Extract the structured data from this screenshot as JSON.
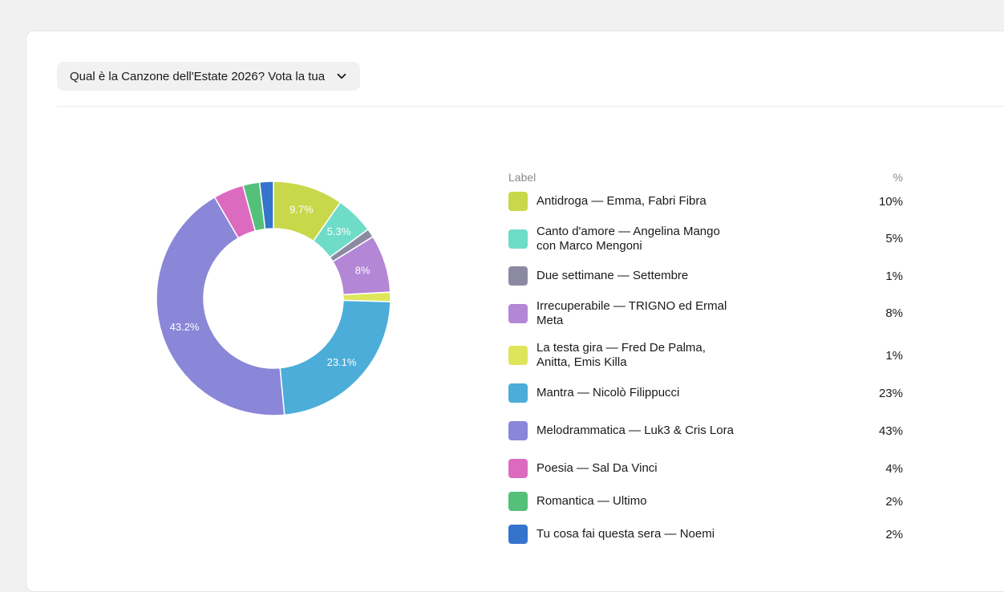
{
  "poll": {
    "question": "Qual è la Canzone dell'Estate 2026? Vota la tua"
  },
  "legend": {
    "header_label": "Label",
    "header_pct": "%"
  },
  "chart_data": {
    "type": "pie",
    "donut": true,
    "start_angle_deg": 0,
    "direction": "clockwise",
    "slices": [
      {
        "label": "Antidroga — Emma, Fabri Fibra",
        "value": 9.7,
        "pct_label": "10%",
        "color": "#c9d84a",
        "slice_label": "9.7%"
      },
      {
        "label": "Canto d'amore — Angelina Mango con Marco Mengoni",
        "value": 5.3,
        "pct_label": "5%",
        "color": "#6fdcc8",
        "slice_label": "5.3%"
      },
      {
        "label": "Due settimane — Settembre",
        "value": 1.2,
        "pct_label": "1%",
        "color": "#8c8aa3",
        "slice_label": ""
      },
      {
        "label": "Irrecuperabile — TRIGNO ed Ermal Meta",
        "value": 8.0,
        "pct_label": "8%",
        "color": "#b486d6",
        "slice_label": "8%"
      },
      {
        "label": "La testa gira — Fred De Palma, Anitta, Emis Killa",
        "value": 1.3,
        "pct_label": "1%",
        "color": "#dfe55a",
        "slice_label": ""
      },
      {
        "label": "Mantra — Nicolò Filippucci",
        "value": 23.1,
        "pct_label": "23%",
        "color": "#4badd8",
        "slice_label": "23.1%"
      },
      {
        "label": "Melodrammatica — Luk3 & Cris Lora",
        "value": 43.2,
        "pct_label": "43%",
        "color": "#8a86d8",
        "slice_label": "43.2%"
      },
      {
        "label": "Poesia — Sal Da Vinci",
        "value": 4.2,
        "pct_label": "4%",
        "color": "#dc6bc0",
        "slice_label": ""
      },
      {
        "label": "Romantica — Ultimo",
        "value": 2.3,
        "pct_label": "2%",
        "color": "#55c07a",
        "slice_label": ""
      },
      {
        "label": "Tu cosa fai questa sera — Noemi",
        "value": 1.9,
        "pct_label": "2%",
        "color": "#3574cc",
        "slice_label": ""
      }
    ]
  }
}
